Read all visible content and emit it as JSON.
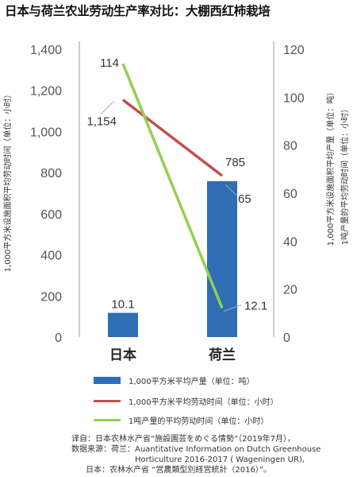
{
  "title": "日本与荷兰农业劳动生产率对比：大棚西红柿栽培",
  "chart_data": {
    "type": "bar",
    "categories": [
      "日本",
      "荷兰"
    ],
    "left_axis": {
      "label": "1,000平方米设施面积平均劳动时间（单位：小时）",
      "ylim": [
        0,
        1400
      ],
      "ticks": [
        "0",
        "200",
        "400",
        "600",
        "800",
        "1,000",
        "1,200",
        "1,400"
      ]
    },
    "right_axis": {
      "label_line1": "1,000平方米设施面积平均产量（单位：吨）",
      "label_line2": "1吨产量的平均劳动时间（单位：小时）",
      "ylim": [
        0,
        120
      ],
      "ticks": [
        "0",
        "20",
        "40",
        "60",
        "80",
        "100",
        "120"
      ]
    },
    "series": [
      {
        "name": "1,000平方米平均产量（单位：吨）",
        "kind": "bar",
        "axis": "right",
        "color": "#2f6db5",
        "values": [
          10.1,
          65
        ],
        "labels": [
          "10.1",
          "65"
        ]
      },
      {
        "name": "1,000平方米平均劳动时间（单位：小时）",
        "kind": "line",
        "axis": "left",
        "color": "#c0504d",
        "values": [
          1154,
          785
        ],
        "labels": [
          "1,154",
          "785"
        ]
      },
      {
        "name": "1吨产量的平均劳动时间（单位：小时）",
        "kind": "line",
        "axis": "right",
        "color": "#92d050",
        "values": [
          114,
          12.1
        ],
        "labels": [
          "114",
          "12.1"
        ]
      }
    ]
  },
  "source": {
    "line1_key": "译自：",
    "line1_val": "日本农林水产省“施設園芸をめぐる情勢”（2019年7月），",
    "line2_key": "数据来源：荷兰：",
    "line2_val": "Auantitative Information on Dutch Greenhouse Horticulture 2016-2017 ( Wageningen UR),",
    "line3_key": "日本：",
    "line3_val": "农林水产省 “営農類型別経営統計（2016）”。"
  }
}
